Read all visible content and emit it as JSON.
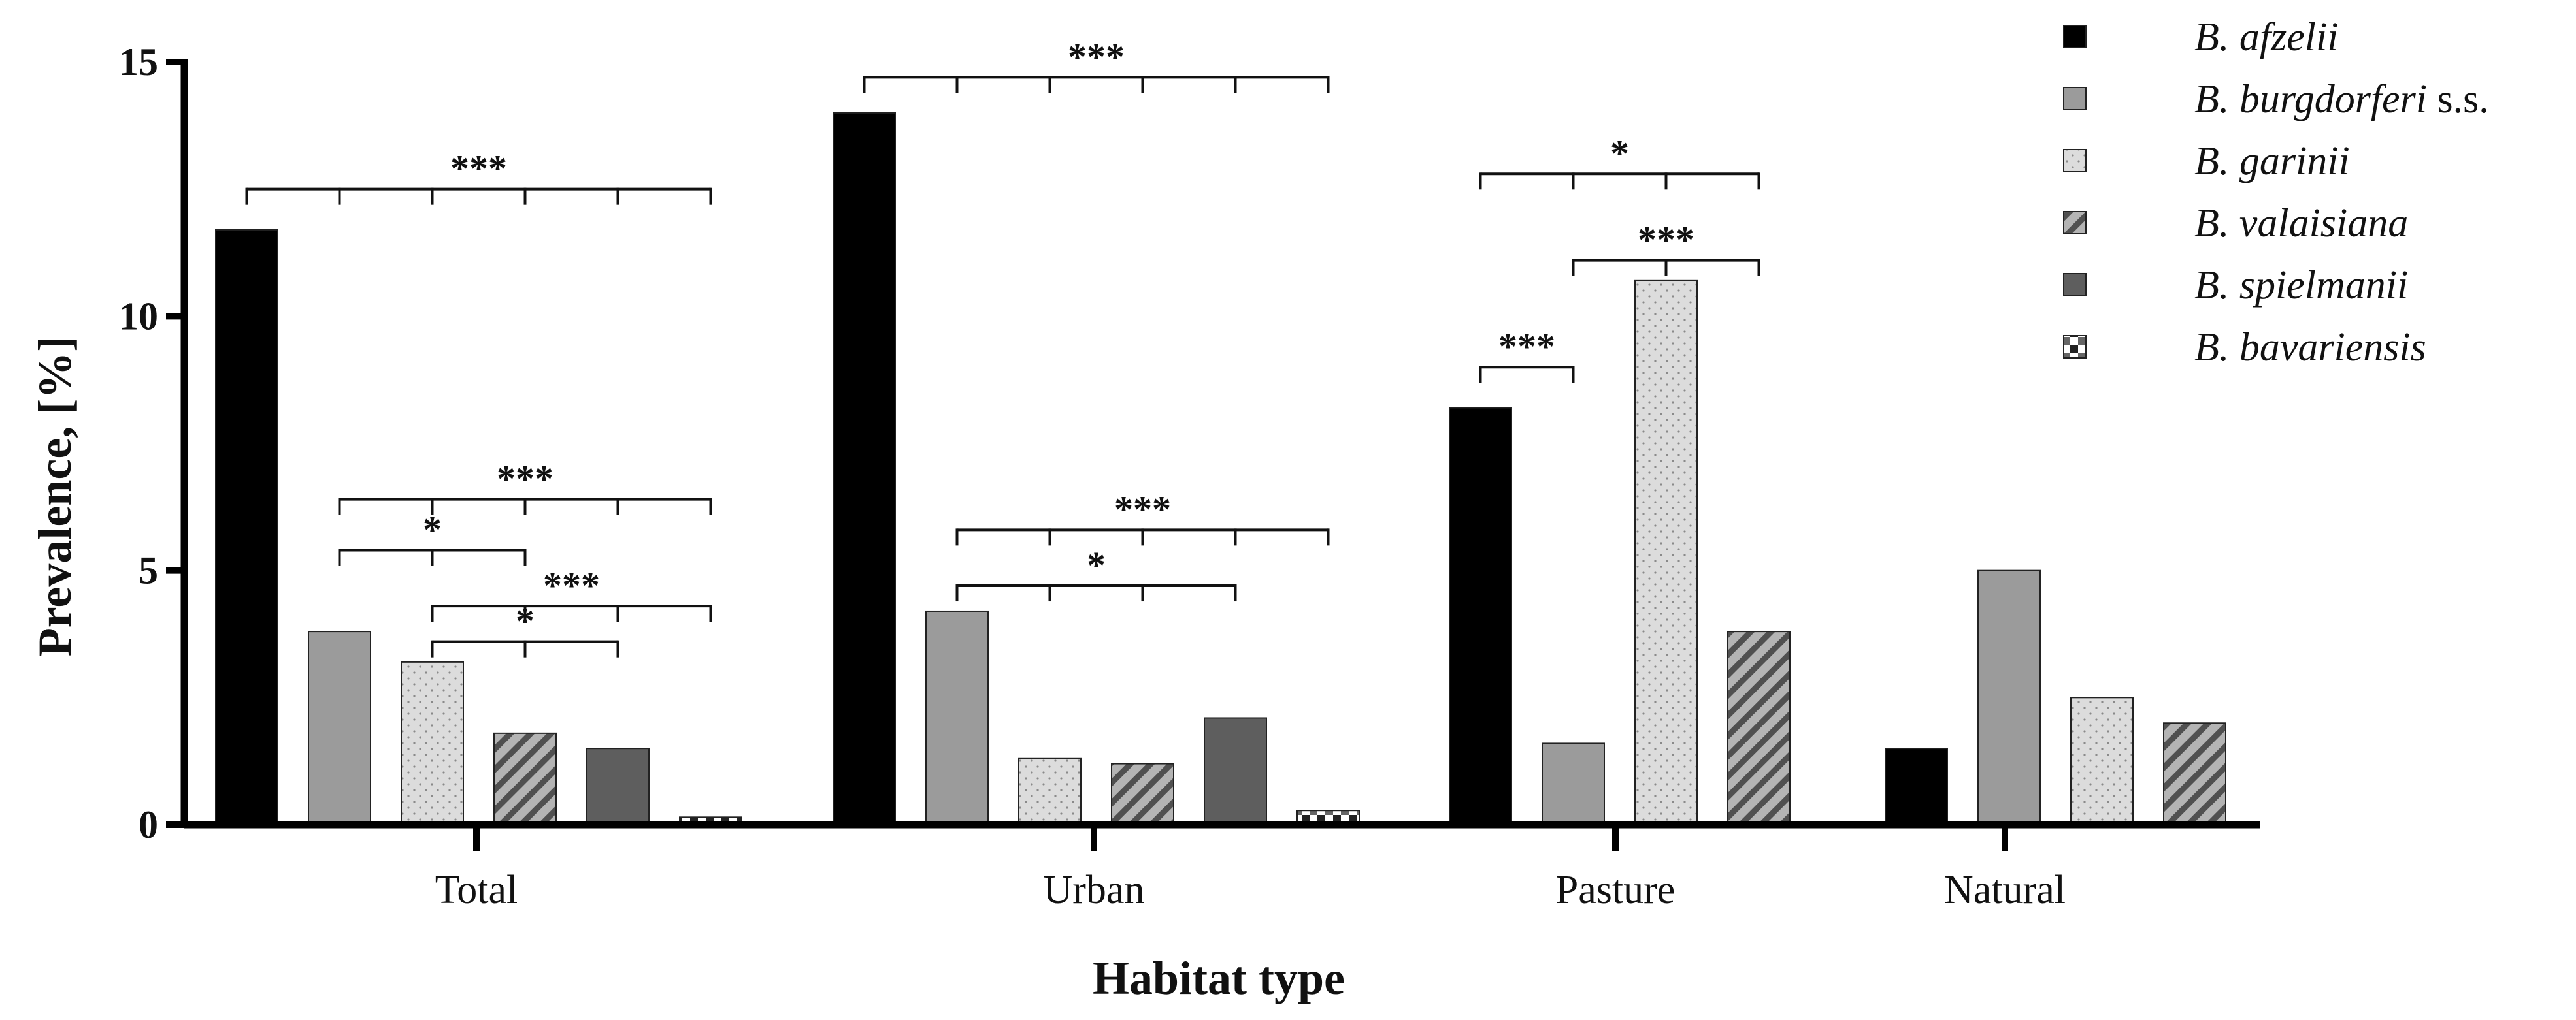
{
  "chart_data": {
    "type": "bar",
    "title": "",
    "xlabel": "Habitat type",
    "ylabel": "Prevalence, [%]",
    "ylim": [
      0,
      15
    ],
    "yticks": [
      0,
      5,
      10,
      15
    ],
    "grid": false,
    "legend_position": "top-right",
    "categories": [
      "Total",
      "Urban",
      "Pasture",
      "Natural"
    ],
    "series": [
      {
        "name": "B. afzelii",
        "name_italic": "B. afzelii",
        "name_suffix": "",
        "pattern": "solid-black",
        "values": [
          11.7,
          14.0,
          8.2,
          1.5
        ]
      },
      {
        "name": "B. burgdorferi s.s.",
        "name_italic": "B. burgdorferi",
        "name_suffix": " s.s.",
        "pattern": "solid-gray",
        "values": [
          3.8,
          4.2,
          1.6,
          5.0
        ]
      },
      {
        "name": "B. garinii",
        "name_italic": "B. garinii",
        "name_suffix": "",
        "pattern": "dotted",
        "values": [
          3.2,
          1.3,
          10.7,
          2.5
        ]
      },
      {
        "name": "B. valaisiana",
        "name_italic": "B. valaisiana",
        "name_suffix": "",
        "pattern": "hatched",
        "values": [
          1.8,
          1.2,
          3.8,
          2.0
        ]
      },
      {
        "name": "B. spielmanii",
        "name_italic": "B. spielmanii",
        "name_suffix": "",
        "pattern": "solid-darkgray",
        "values": [
          1.5,
          2.1,
          null,
          null
        ]
      },
      {
        "name": "B. bavariensis",
        "name_italic": "B. bavariensis",
        "name_suffix": "",
        "pattern": "checker",
        "values": [
          0.15,
          0.28,
          null,
          null
        ]
      }
    ],
    "significance": [
      {
        "category": "Total",
        "from_series": 0,
        "to_series": 5,
        "level": 12.5,
        "label": "***"
      },
      {
        "category": "Total",
        "from_series": 1,
        "to_series": 5,
        "level": 6.4,
        "label": "***"
      },
      {
        "category": "Total",
        "from_series": 1,
        "to_series": 3,
        "level": 5.4,
        "label": "*"
      },
      {
        "category": "Total",
        "from_series": 2,
        "to_series": 5,
        "level": 4.3,
        "label": "***"
      },
      {
        "category": "Total",
        "from_series": 2,
        "to_series": 4,
        "level": 3.6,
        "label": "*"
      },
      {
        "category": "Urban",
        "from_series": 0,
        "to_series": 5,
        "level": 14.7,
        "label": "***"
      },
      {
        "category": "Urban",
        "from_series": 1,
        "to_series": 5,
        "level": 5.8,
        "label": "***"
      },
      {
        "category": "Urban",
        "from_series": 1,
        "to_series": 4,
        "level": 4.7,
        "label": "*"
      },
      {
        "category": "Pasture",
        "from_series": 0,
        "to_series": 3,
        "level": 12.8,
        "label": "*"
      },
      {
        "category": "Pasture",
        "from_series": 1,
        "to_series": 3,
        "level": 11.1,
        "label": "***"
      },
      {
        "category": "Pasture",
        "from_series": 0,
        "to_series": 1,
        "level": 9.0,
        "label": "***"
      }
    ]
  }
}
